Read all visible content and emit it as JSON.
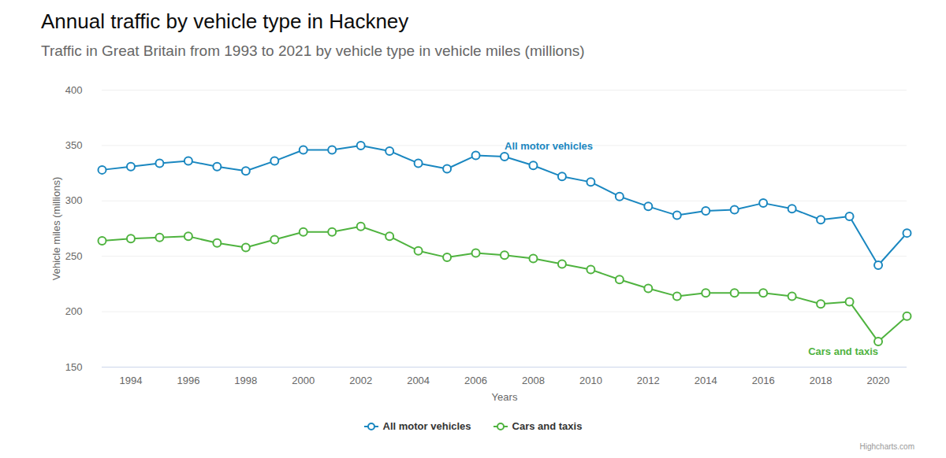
{
  "chart_data": {
    "type": "line",
    "title": "Annual traffic by vehicle type in Hackney",
    "subtitle": "Traffic in Great Britain from 1993 to 2021 by vehicle type in vehicle miles (millions)",
    "x_label": "Years",
    "y_label": "Vehicle miles (millions)",
    "credit": "Highcharts.com",
    "x": [
      1993,
      1994,
      1995,
      1996,
      1997,
      1998,
      1999,
      2000,
      2001,
      2002,
      2003,
      2004,
      2005,
      2006,
      2007,
      2008,
      2009,
      2010,
      2011,
      2012,
      2013,
      2014,
      2015,
      2016,
      2017,
      2018,
      2019,
      2020,
      2021
    ],
    "series": [
      {
        "name": "All motor vehicles",
        "color": "#1a87c0",
        "marker": "circle",
        "line_style": "solid",
        "values": [
          328,
          331,
          334,
          336,
          331,
          327,
          336,
          346,
          346,
          350,
          345,
          334,
          329,
          341,
          340,
          332,
          322,
          317,
          304,
          295,
          287,
          291,
          292,
          298,
          293,
          283,
          286,
          242,
          271
        ]
      },
      {
        "name": "Cars and taxis",
        "color": "#4fb33f",
        "marker": "circle",
        "line_style": "solid",
        "values": [
          264,
          266,
          267,
          268,
          262,
          258,
          265,
          272,
          272,
          277,
          268,
          255,
          249,
          253,
          251,
          248,
          243,
          238,
          229,
          221,
          214,
          217,
          217,
          217,
          214,
          207,
          209,
          173,
          196
        ]
      }
    ],
    "xlim": [
      1993,
      2021
    ],
    "xticks": [
      1994,
      1996,
      1998,
      2000,
      2002,
      2004,
      2006,
      2008,
      2010,
      2012,
      2014,
      2016,
      2018,
      2020
    ],
    "ylim": [
      150,
      400
    ],
    "yticks": [
      150,
      200,
      250,
      300,
      350,
      400
    ],
    "grid": true,
    "legend": "bottom"
  }
}
